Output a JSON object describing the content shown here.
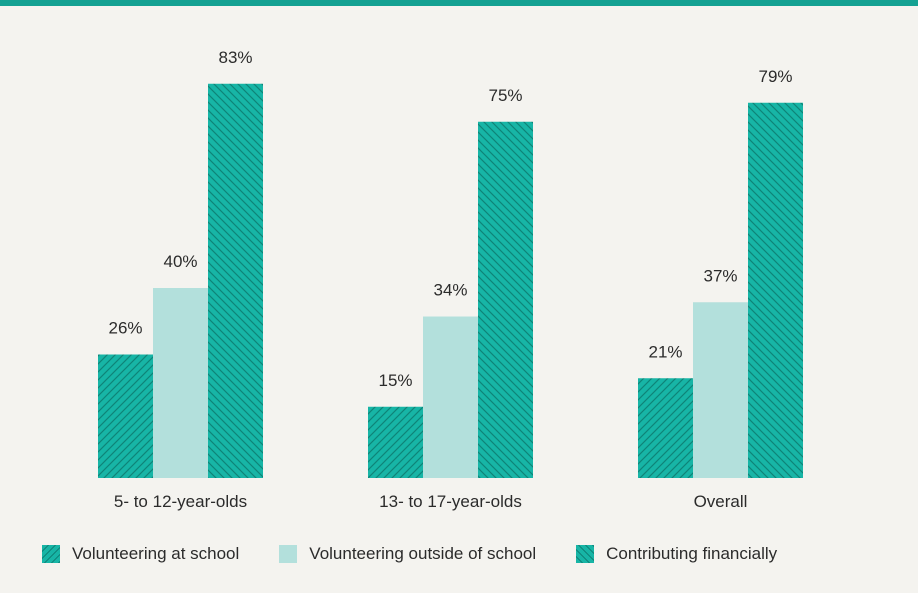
{
  "chart_data": {
    "type": "bar",
    "title": "",
    "xlabel": "",
    "ylabel": "",
    "ylim": [
      0,
      100
    ],
    "categories": [
      "5- to 12-year-olds",
      "13- to 17-year-olds",
      "Overall"
    ],
    "series": [
      {
        "name": "Volunteering at school",
        "values": [
          26,
          15,
          21
        ],
        "labels": [
          "26%",
          "15%",
          "21%"
        ]
      },
      {
        "name": "Volunteering outside of school",
        "values": [
          40,
          34,
          37
        ],
        "labels": [
          "40%",
          "34%",
          "37%"
        ]
      },
      {
        "name": "Contributing financially",
        "values": [
          83,
          75,
          79
        ],
        "labels": [
          "83%",
          "75%",
          "79%"
        ]
      }
    ],
    "legend_position": "bottom",
    "grid": false
  },
  "colors": {
    "background": "#f4f3ef",
    "accent_bar": "#14a192",
    "teal": "#17b5a6",
    "teal_hatch": "#0e8478",
    "light_teal": "#b3e0dc",
    "text": "#2b2b2b"
  }
}
